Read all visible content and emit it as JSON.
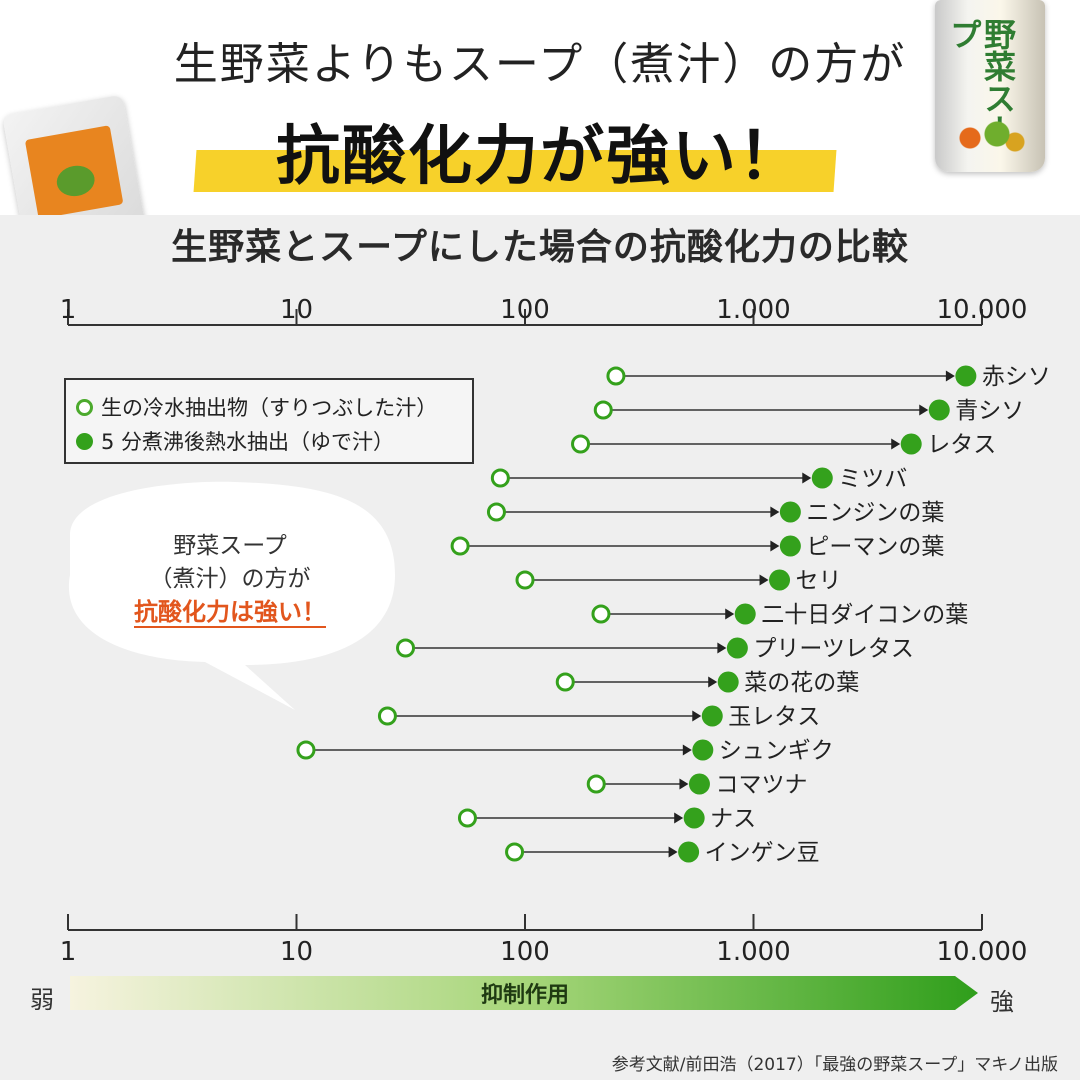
{
  "header": {
    "headline_line1": "生野菜よりもスープ（煮汁）の方が",
    "headline_line2": "抗酸化力が強い！",
    "can_text": "野菜スープ"
  },
  "chart_title": "生野菜とスープにした場合の抗酸化力の比較",
  "legend": {
    "raw_label": "生の冷水抽出物（すりつぶした汁）",
    "boiled_label": "5 分煮沸後熱水抽出（ゆで汁）"
  },
  "callout": {
    "line1": "野菜スープ",
    "line2": "（煮汁）の方が",
    "emphasis": "抗酸化力は強い！"
  },
  "scale": {
    "weak": "弱",
    "strong": "強",
    "label": "抑制作用"
  },
  "citation": "参考文献/前田浩（2017）「最強の野菜スープ」マキノ出版",
  "colors": {
    "marker_green": "#34a11c",
    "highlight_yellow": "#f7d12a",
    "emphasis_orange": "#e2561d"
  },
  "chart_data": {
    "type": "dumbbell",
    "title": "生野菜とスープにした場合の抗酸化力の比較",
    "x_scale": "log",
    "xlim": [
      1,
      10000
    ],
    "tick_values": [
      1,
      10,
      100,
      1000,
      10000
    ],
    "tick_labels": [
      "1",
      "10",
      "100",
      "1.000",
      "10.000"
    ],
    "series": [
      {
        "name": "生の冷水抽出物（すりつぶした汁）",
        "marker": "open"
      },
      {
        "name": "5 分煮沸後熱水抽出（ゆで汁）",
        "marker": "filled"
      }
    ],
    "rows": [
      {
        "label": "赤シソ",
        "raw": 250,
        "boiled": 8500
      },
      {
        "label": "青シソ",
        "raw": 220,
        "boiled": 6500
      },
      {
        "label": "レタス",
        "raw": 175,
        "boiled": 4900
      },
      {
        "label": "ミツバ",
        "raw": 78,
        "boiled": 2000
      },
      {
        "label": "ニンジンの葉",
        "raw": 75,
        "boiled": 1450
      },
      {
        "label": "ピーマンの葉",
        "raw": 52,
        "boiled": 1450
      },
      {
        "label": "セリ",
        "raw": 100,
        "boiled": 1300
      },
      {
        "label": "二十日ダイコンの葉",
        "raw": 215,
        "boiled": 920
      },
      {
        "label": "プリーツレタス",
        "raw": 30,
        "boiled": 850
      },
      {
        "label": "菜の花の葉",
        "raw": 150,
        "boiled": 775
      },
      {
        "label": "玉レタス",
        "raw": 25,
        "boiled": 660
      },
      {
        "label": "シュンギク",
        "raw": 11,
        "boiled": 600
      },
      {
        "label": "コマツナ",
        "raw": 205,
        "boiled": 580
      },
      {
        "label": "ナス",
        "raw": 56,
        "boiled": 550
      },
      {
        "label": "インゲン豆",
        "raw": 90,
        "boiled": 520
      }
    ]
  }
}
